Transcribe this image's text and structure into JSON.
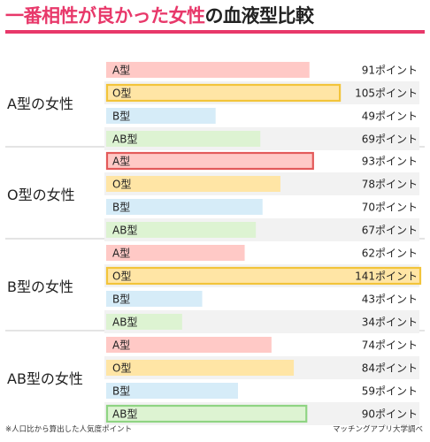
{
  "title": {
    "accent": "一番相性が良かった女性",
    "rest": "の血液型比較"
  },
  "footnote": "※人口比から算出した人気度ポイント",
  "source": "マッチングアプリ大学調べ",
  "unit_suffix": "ポイント",
  "colors": {
    "accent": "#e8386a",
    "A": "#ffc9c6",
    "O": "#ffe5a5",
    "B": "#d6ecf8",
    "AB": "#ddf3d2",
    "highlight_red": "#e35a5a",
    "highlight_gold": "#f2c43a",
    "highlight_green": "#8fd483",
    "row_alt": "#f2f2f2",
    "divider": "#c8c8c8"
  },
  "chart_data": {
    "type": "bar",
    "orientation": "horizontal",
    "xlim": [
      0,
      141
    ],
    "categories": [
      "A型",
      "O型",
      "B型",
      "AB型"
    ],
    "groups": [
      {
        "label": "A型の女性",
        "values": [
          91,
          105,
          49,
          69
        ],
        "highlight": "O型"
      },
      {
        "label": "O型の女性",
        "values": [
          93,
          78,
          70,
          67
        ],
        "highlight": "A型"
      },
      {
        "label": "B型の女性",
        "values": [
          62,
          141,
          43,
          34
        ],
        "highlight": "O型"
      },
      {
        "label": "AB型の女性",
        "values": [
          74,
          84,
          59,
          90
        ],
        "highlight": "AB型"
      }
    ]
  }
}
